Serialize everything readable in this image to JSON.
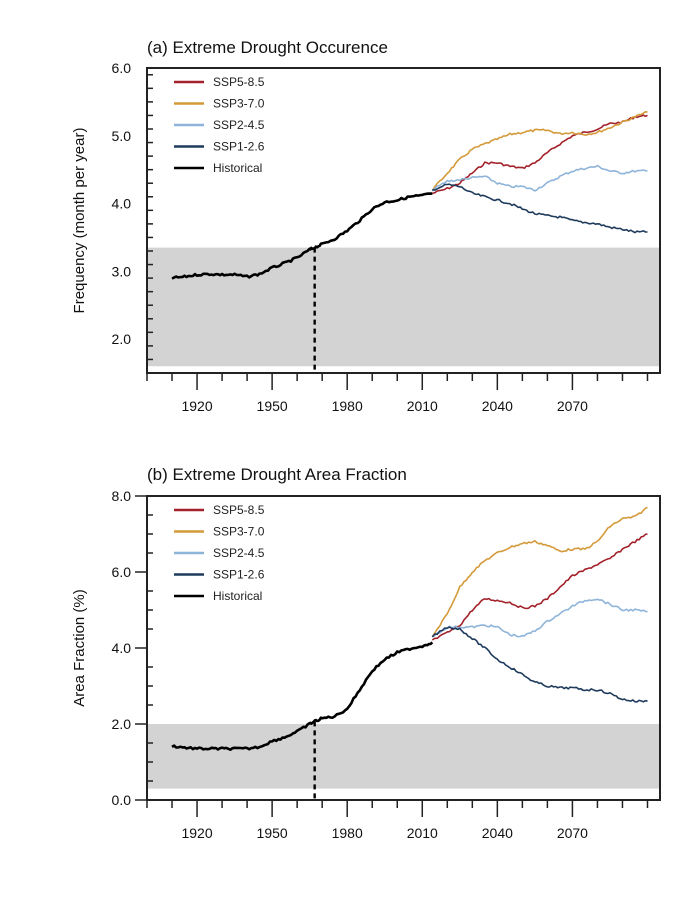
{
  "chart_data": [
    {
      "type": "line",
      "title": "(a) Extreme Drought Occurence",
      "xlabel": "",
      "ylabel": "Frequency (month per year)",
      "xlim": [
        1900,
        2105
      ],
      "ylim": [
        1.5,
        6.0
      ],
      "xticks": [
        1920,
        1950,
        1980,
        2010,
        2040,
        2070
      ],
      "yticks": [
        2.0,
        3.0,
        4.0,
        5.0,
        6.0
      ],
      "ytick_labels": [
        "2.0",
        "3.0",
        "4.0",
        "5.0",
        "6.0"
      ],
      "shaded_band": {
        "y_from": 1.6,
        "y_to": 3.35,
        "color": "#d3d3d3"
      },
      "vertical_dashed_line_x": 1967,
      "legend": {
        "placement": "top-left"
      },
      "series": [
        {
          "name": "SSP5-8.5",
          "color": "#a3222a",
          "x": [
            2014,
            2020,
            2025,
            2030,
            2035,
            2040,
            2045,
            2050,
            2055,
            2060,
            2065,
            2070,
            2075,
            2080,
            2085,
            2090,
            2095,
            2100
          ],
          "y": [
            4.15,
            4.22,
            4.3,
            4.45,
            4.6,
            4.6,
            4.55,
            4.52,
            4.6,
            4.75,
            4.88,
            5.0,
            5.05,
            5.1,
            5.18,
            5.2,
            5.28,
            5.3
          ]
        },
        {
          "name": "SSP3-7.0",
          "color": "#d49a3a",
          "x": [
            2014,
            2020,
            2025,
            2030,
            2035,
            2040,
            2045,
            2050,
            2055,
            2060,
            2065,
            2070,
            2075,
            2080,
            2085,
            2090,
            2095,
            2100
          ],
          "y": [
            4.2,
            4.45,
            4.65,
            4.8,
            4.88,
            4.95,
            5.02,
            5.05,
            5.08,
            5.08,
            5.03,
            5.05,
            5.02,
            5.05,
            5.12,
            5.2,
            5.28,
            5.35
          ]
        },
        {
          "name": "SSP2-4.5",
          "color": "#8fb4d9",
          "x": [
            2014,
            2020,
            2025,
            2030,
            2035,
            2040,
            2045,
            2050,
            2055,
            2060,
            2065,
            2070,
            2075,
            2080,
            2085,
            2090,
            2095,
            2100
          ],
          "y": [
            4.2,
            4.33,
            4.35,
            4.38,
            4.4,
            4.3,
            4.25,
            4.25,
            4.2,
            4.3,
            4.4,
            4.48,
            4.52,
            4.55,
            4.48,
            4.45,
            4.48,
            4.48
          ]
        },
        {
          "name": "SSP1-2.6",
          "color": "#1f3b5c",
          "x": [
            2014,
            2020,
            2025,
            2030,
            2035,
            2040,
            2045,
            2050,
            2055,
            2060,
            2065,
            2070,
            2075,
            2080,
            2085,
            2090,
            2095,
            2100
          ],
          "y": [
            4.2,
            4.28,
            4.25,
            4.15,
            4.1,
            4.05,
            4.0,
            3.92,
            3.85,
            3.82,
            3.8,
            3.75,
            3.72,
            3.7,
            3.65,
            3.62,
            3.58,
            3.58
          ]
        },
        {
          "name": "Historical",
          "color": "#000000",
          "x": [
            1910,
            1915,
            1920,
            1925,
            1930,
            1935,
            1940,
            1945,
            1950,
            1955,
            1960,
            1965,
            1967,
            1970,
            1975,
            1980,
            1985,
            1990,
            1995,
            2000,
            2005,
            2010,
            2014
          ],
          "y": [
            2.9,
            2.92,
            2.95,
            2.96,
            2.95,
            2.95,
            2.92,
            2.96,
            3.05,
            3.12,
            3.2,
            3.32,
            3.35,
            3.4,
            3.48,
            3.6,
            3.75,
            3.92,
            4.02,
            4.05,
            4.1,
            4.12,
            4.15
          ]
        }
      ]
    },
    {
      "type": "line",
      "title": "(b) Extreme Drought Area Fraction",
      "xlabel": "",
      "ylabel": "Area Fraction (%)",
      "xlim": [
        1900,
        2105
      ],
      "ylim": [
        0.0,
        8.0
      ],
      "xticks": [
        1920,
        1950,
        1980,
        2010,
        2040,
        2070
      ],
      "yticks": [
        0.0,
        2.0,
        4.0,
        6.0,
        8.0
      ],
      "ytick_labels": [
        "0.0",
        "2.0",
        "4.0",
        "6.0",
        "8.0"
      ],
      "shaded_band": {
        "y_from": 0.3,
        "y_to": 2.0,
        "color": "#d3d3d3"
      },
      "vertical_dashed_line_x": 1967,
      "legend": {
        "placement": "top-left"
      },
      "series": [
        {
          "name": "SSP5-8.5",
          "color": "#a3222a",
          "x": [
            2014,
            2020,
            2025,
            2030,
            2035,
            2040,
            2045,
            2050,
            2055,
            2060,
            2065,
            2070,
            2075,
            2080,
            2085,
            2090,
            2095,
            2100
          ],
          "y": [
            4.2,
            4.4,
            4.6,
            5.0,
            5.3,
            5.25,
            5.2,
            5.05,
            5.1,
            5.3,
            5.6,
            5.9,
            6.05,
            6.2,
            6.35,
            6.6,
            6.8,
            7.0
          ]
        },
        {
          "name": "SSP3-7.0",
          "color": "#d49a3a",
          "x": [
            2014,
            2020,
            2025,
            2030,
            2035,
            2040,
            2045,
            2050,
            2055,
            2060,
            2065,
            2070,
            2075,
            2080,
            2085,
            2090,
            2095,
            2100
          ],
          "y": [
            4.3,
            4.9,
            5.6,
            6.0,
            6.3,
            6.5,
            6.65,
            6.75,
            6.8,
            6.7,
            6.55,
            6.6,
            6.6,
            6.8,
            7.2,
            7.4,
            7.45,
            7.7
          ]
        },
        {
          "name": "SSP2-4.5",
          "color": "#8fb4d9",
          "x": [
            2014,
            2020,
            2025,
            2030,
            2035,
            2040,
            2045,
            2050,
            2055,
            2060,
            2065,
            2070,
            2075,
            2080,
            2085,
            2090,
            2095,
            2100
          ],
          "y": [
            4.3,
            4.55,
            4.55,
            4.55,
            4.6,
            4.55,
            4.35,
            4.3,
            4.45,
            4.7,
            4.9,
            5.1,
            5.25,
            5.3,
            5.15,
            5.0,
            5.0,
            4.95
          ]
        },
        {
          "name": "SSP1-2.6",
          "color": "#1f3b5c",
          "x": [
            2014,
            2020,
            2025,
            2030,
            2035,
            2040,
            2045,
            2050,
            2055,
            2060,
            2065,
            2070,
            2075,
            2080,
            2085,
            2090,
            2095,
            2100
          ],
          "y": [
            4.3,
            4.55,
            4.5,
            4.25,
            4.0,
            3.7,
            3.5,
            3.3,
            3.1,
            3.0,
            2.95,
            2.95,
            2.9,
            2.9,
            2.8,
            2.65,
            2.6,
            2.6
          ]
        },
        {
          "name": "Historical",
          "color": "#000000",
          "x": [
            1910,
            1915,
            1920,
            1925,
            1930,
            1935,
            1940,
            1945,
            1950,
            1955,
            1960,
            1965,
            1967,
            1970,
            1975,
            1980,
            1985,
            1990,
            1995,
            2000,
            2005,
            2010,
            2014
          ],
          "y": [
            1.42,
            1.38,
            1.35,
            1.35,
            1.35,
            1.35,
            1.35,
            1.4,
            1.55,
            1.65,
            1.8,
            2.0,
            2.07,
            2.15,
            2.2,
            2.4,
            2.9,
            3.4,
            3.7,
            3.88,
            3.98,
            4.05,
            4.15
          ]
        }
      ]
    }
  ]
}
